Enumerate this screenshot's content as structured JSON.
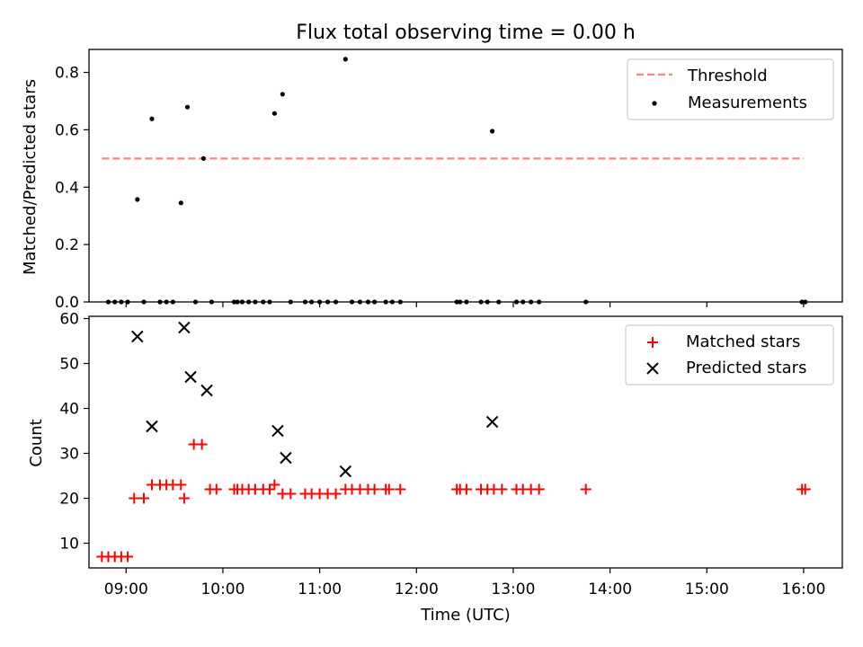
{
  "chart_data": [
    {
      "type": "scatter",
      "title": "Flux total observing time = 0.00 h",
      "xlabel": "",
      "ylabel": "Matched/Predicted stars",
      "ylim": [
        0,
        0.88
      ],
      "yticks": [
        0.0,
        0.2,
        0.4,
        0.6,
        0.8
      ],
      "ytick_labels": [
        "0.0",
        "0.2",
        "0.4",
        "0.6",
        "0.8"
      ],
      "xlim": [
        "08:37",
        "16:24"
      ],
      "xticks": [
        "09:00",
        "10:00",
        "11:00",
        "12:00",
        "13:00",
        "14:00",
        "15:00",
        "16:00"
      ],
      "tick_labels_visible": false,
      "legend_position": "top-right",
      "threshold": {
        "name": "Threshold",
        "value": 0.5,
        "x_start": "08:45",
        "x_end": "16:00",
        "color": "#ff8080",
        "style": "dashed"
      },
      "series": [
        {
          "name": "Measurements",
          "color": "#000000",
          "marker": "dot",
          "points": [
            [
              "08:49",
              0.0
            ],
            [
              "08:53",
              0.0
            ],
            [
              "08:57",
              0.0
            ],
            [
              "09:01",
              0.0
            ],
            [
              "09:07",
              0.357
            ],
            [
              "09:11",
              0.0
            ],
            [
              "09:16",
              0.638
            ],
            [
              "09:21",
              0.0
            ],
            [
              "09:25",
              0.0
            ],
            [
              "09:29",
              0.0
            ],
            [
              "09:34",
              0.345
            ],
            [
              "09:38",
              0.679
            ],
            [
              "09:43",
              0.0
            ],
            [
              "09:48",
              0.5
            ],
            [
              "09:53",
              0.0
            ],
            [
              "10:07",
              0.0
            ],
            [
              "10:09",
              0.0
            ],
            [
              "10:12",
              0.0
            ],
            [
              "10:16",
              0.0
            ],
            [
              "10:20",
              0.0
            ],
            [
              "10:25",
              0.0
            ],
            [
              "10:29",
              0.0
            ],
            [
              "10:32",
              0.657
            ],
            [
              "10:37",
              0.724
            ],
            [
              "10:42",
              0.0
            ],
            [
              "10:51",
              0.0
            ],
            [
              "10:55",
              0.0
            ],
            [
              "11:00",
              0.0
            ],
            [
              "11:05",
              0.0
            ],
            [
              "11:10",
              0.0
            ],
            [
              "11:16",
              0.846
            ],
            [
              "11:20",
              0.0
            ],
            [
              "11:25",
              0.0
            ],
            [
              "11:30",
              0.0
            ],
            [
              "11:34",
              0.0
            ],
            [
              "11:41",
              0.0
            ],
            [
              "11:45",
              0.0
            ],
            [
              "11:50",
              0.0
            ],
            [
              "12:25",
              0.0
            ],
            [
              "12:27",
              0.0
            ],
            [
              "12:31",
              0.0
            ],
            [
              "12:40",
              0.0
            ],
            [
              "12:44",
              0.0
            ],
            [
              "12:47",
              0.595
            ],
            [
              "12:51",
              0.0
            ],
            [
              "13:02",
              0.0
            ],
            [
              "13:06",
              0.0
            ],
            [
              "13:11",
              0.0
            ],
            [
              "13:16",
              0.0
            ],
            [
              "13:45",
              0.0
            ],
            [
              "15:59",
              0.0
            ],
            [
              "16:01",
              0.0
            ]
          ]
        }
      ]
    },
    {
      "type": "scatter",
      "title": "",
      "xlabel": "Time (UTC)",
      "ylabel": "Count",
      "ylim": [
        4.5,
        60.5
      ],
      "yticks": [
        10,
        20,
        30,
        40,
        50,
        60
      ],
      "ytick_labels": [
        "10",
        "20",
        "30",
        "40",
        "50",
        "60"
      ],
      "xlim": [
        "08:37",
        "16:24"
      ],
      "xticks": [
        "09:00",
        "10:00",
        "11:00",
        "12:00",
        "13:00",
        "14:00",
        "15:00",
        "16:00"
      ],
      "legend_position": "top-right",
      "series": [
        {
          "name": "Matched stars",
          "color": "#ff0000",
          "marker": "plus",
          "points": [
            [
              "08:45",
              7
            ],
            [
              "08:49",
              7
            ],
            [
              "08:53",
              7
            ],
            [
              "08:57",
              7
            ],
            [
              "09:01",
              7
            ],
            [
              "09:05",
              20
            ],
            [
              "09:11",
              20
            ],
            [
              "09:16",
              23
            ],
            [
              "09:21",
              23
            ],
            [
              "09:25",
              23
            ],
            [
              "09:29",
              23
            ],
            [
              "09:34",
              23
            ],
            [
              "09:36",
              20
            ],
            [
              "09:42",
              32
            ],
            [
              "09:47",
              32
            ],
            [
              "09:52",
              22
            ],
            [
              "09:56",
              22
            ],
            [
              "10:07",
              22
            ],
            [
              "10:09",
              22
            ],
            [
              "10:12",
              22
            ],
            [
              "10:16",
              22
            ],
            [
              "10:20",
              22
            ],
            [
              "10:25",
              22
            ],
            [
              "10:29",
              22
            ],
            [
              "10:32",
              23
            ],
            [
              "10:37",
              21
            ],
            [
              "10:42",
              21
            ],
            [
              "10:51",
              21
            ],
            [
              "10:55",
              21
            ],
            [
              "11:00",
              21
            ],
            [
              "11:05",
              21
            ],
            [
              "11:10",
              21
            ],
            [
              "11:16",
              22
            ],
            [
              "11:20",
              22
            ],
            [
              "11:25",
              22
            ],
            [
              "11:30",
              22
            ],
            [
              "11:34",
              22
            ],
            [
              "11:41",
              22
            ],
            [
              "11:43",
              22
            ],
            [
              "11:50",
              22
            ],
            [
              "12:25",
              22
            ],
            [
              "12:27",
              22
            ],
            [
              "12:31",
              22
            ],
            [
              "12:40",
              22
            ],
            [
              "12:44",
              22
            ],
            [
              "12:48",
              22
            ],
            [
              "12:53",
              22
            ],
            [
              "13:02",
              22
            ],
            [
              "13:06",
              22
            ],
            [
              "13:11",
              22
            ],
            [
              "13:16",
              22
            ],
            [
              "13:45",
              22
            ],
            [
              "15:59",
              22
            ],
            [
              "16:01",
              22
            ]
          ]
        },
        {
          "name": "Predicted stars",
          "color": "#000000",
          "marker": "x",
          "points": [
            [
              "09:07",
              56
            ],
            [
              "09:16",
              36
            ],
            [
              "09:36",
              58
            ],
            [
              "09:40",
              47
            ],
            [
              "09:50",
              44
            ],
            [
              "10:34",
              35
            ],
            [
              "10:39",
              29
            ],
            [
              "11:16",
              26
            ],
            [
              "12:47",
              37
            ]
          ]
        }
      ]
    }
  ]
}
